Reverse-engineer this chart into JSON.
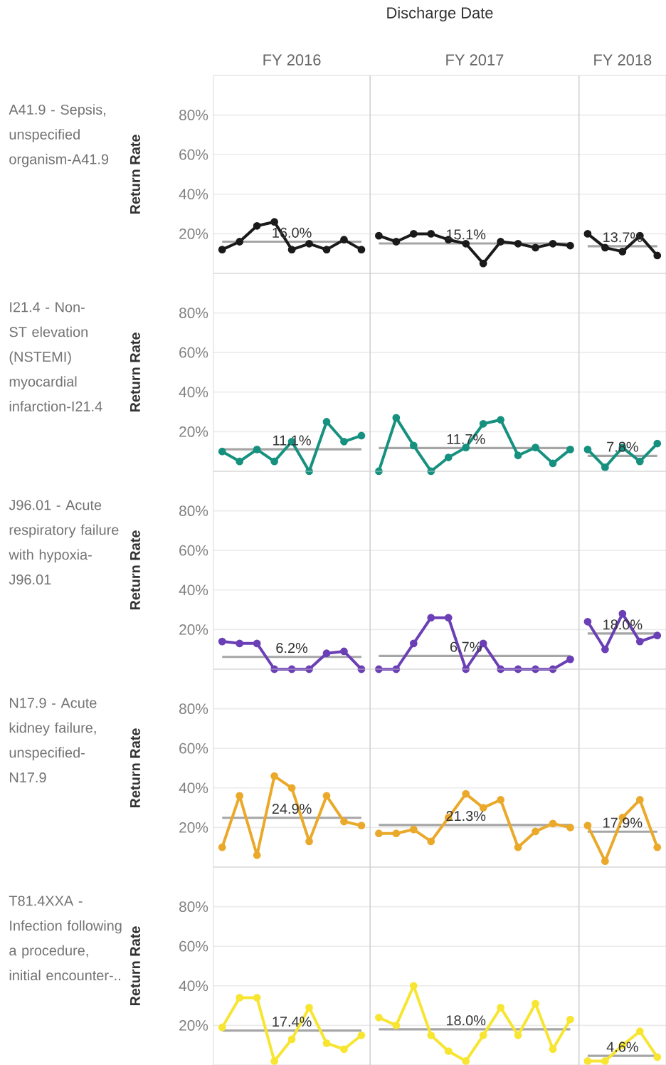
{
  "chart_data": [
    {
      "type": "line",
      "title": "Discharge Date",
      "annotations": [
        "FY 2016",
        "FY 2017",
        "FY 2018"
      ],
      "subtitle": "A41.9 - Sepsis, unspecified organism-A41.9",
      "ylabel": "Return Rate",
      "categories": [
        null,
        null,
        null,
        null,
        null,
        null,
        null,
        null,
        null,
        null,
        null,
        null,
        null,
        null,
        null,
        null,
        null,
        null,
        null,
        null,
        null,
        null,
        null,
        null,
        null,
        null
      ],
      "marker": "circle",
      "ylim": [
        0,
        100
      ],
      "yticks": [
        {
          "value": 20,
          "label": "20%"
        },
        {
          "value": 40,
          "label": "40%"
        },
        {
          "value": 60,
          "label": "60%"
        },
        {
          "value": 80,
          "label": "80%"
        }
      ],
      "grid": "y",
      "tick_labels": "y",
      "series": [
        {
          "color": "#a6a6a6",
          "marker": "none",
          "values": [
            16.0,
            16.0,
            16.0,
            16.0,
            16.0,
            16.0,
            16.0,
            16.0,
            16.0,
            null,
            null,
            null,
            null,
            null,
            null,
            null,
            null,
            null,
            null,
            null,
            null,
            null,
            null,
            null,
            null,
            null
          ],
          "value_labels": [
            null,
            null,
            null,
            null,
            "16.0%",
            null,
            null,
            null,
            null,
            null,
            null,
            null,
            null,
            null,
            null,
            null,
            null,
            null,
            null,
            null,
            null,
            null,
            null,
            null,
            null,
            null
          ]
        },
        {
          "color": "#a6a6a6",
          "marker": "none",
          "values": [
            null,
            null,
            null,
            null,
            null,
            null,
            null,
            null,
            null,
            15.1,
            15.1,
            15.1,
            15.1,
            15.1,
            15.1,
            15.1,
            15.1,
            15.1,
            15.1,
            15.1,
            15.1,
            null,
            null,
            null,
            null,
            null
          ],
          "value_labels": [
            null,
            null,
            null,
            null,
            null,
            null,
            null,
            null,
            null,
            null,
            null,
            null,
            null,
            null,
            "15.1%",
            null,
            null,
            null,
            null,
            null,
            null,
            null,
            null,
            null,
            null,
            null
          ]
        },
        {
          "color": "#a6a6a6",
          "marker": "none",
          "values": [
            null,
            null,
            null,
            null,
            null,
            null,
            null,
            null,
            null,
            null,
            null,
            null,
            null,
            null,
            null,
            null,
            null,
            null,
            null,
            null,
            null,
            13.7,
            13.7,
            13.7,
            13.7,
            13.7
          ],
          "value_labels": [
            null,
            null,
            null,
            null,
            null,
            null,
            null,
            null,
            null,
            null,
            null,
            null,
            null,
            null,
            null,
            null,
            null,
            null,
            null,
            null,
            null,
            null,
            null,
            "13.7%",
            null,
            null
          ]
        },
        {
          "color": "#1a1a1a",
          "values": [
            12,
            16,
            24,
            26,
            12,
            15,
            12,
            17,
            12,
            null,
            null,
            null,
            null,
            null,
            null,
            null,
            null,
            null,
            null,
            null,
            null,
            null,
            null,
            null,
            null,
            null
          ]
        },
        {
          "color": "#1a1a1a",
          "values": [
            null,
            null,
            null,
            null,
            null,
            null,
            null,
            null,
            null,
            19,
            16,
            20,
            20,
            17,
            15,
            5,
            16,
            15,
            13,
            15,
            14,
            null,
            null,
            null,
            null,
            null
          ]
        },
        {
          "color": "#1a1a1a",
          "values": [
            null,
            null,
            null,
            null,
            null,
            null,
            null,
            null,
            null,
            null,
            null,
            null,
            null,
            null,
            null,
            null,
            null,
            null,
            null,
            null,
            null,
            20,
            13,
            11,
            19,
            9
          ]
        }
      ]
    },
    {
      "type": "line",
      "subtitle": "I21.4 - Non-ST elevation (NSTEMI) myocardial infarction-I21.4",
      "ylabel": "Return Rate",
      "categories": [
        null,
        null,
        null,
        null,
        null,
        null,
        null,
        null,
        null,
        null,
        null,
        null,
        null,
        null,
        null,
        null,
        null,
        null,
        null,
        null,
        null,
        null,
        null,
        null,
        null,
        null
      ],
      "marker": "circle",
      "ylim": [
        0,
        100
      ],
      "yticks": [
        {
          "value": 20,
          "label": "20%"
        },
        {
          "value": 40,
          "label": "40%"
        },
        {
          "value": 60,
          "label": "60%"
        },
        {
          "value": 80,
          "label": "80%"
        }
      ],
      "grid": "y",
      "tick_labels": "y",
      "series": [
        {
          "color": "#a6a6a6",
          "marker": "none",
          "values": [
            11.1,
            11.1,
            11.1,
            11.1,
            11.1,
            11.1,
            11.1,
            11.1,
            11.1,
            null,
            null,
            null,
            null,
            null,
            null,
            null,
            null,
            null,
            null,
            null,
            null,
            null,
            null,
            null,
            null,
            null
          ],
          "value_labels": [
            null,
            null,
            null,
            null,
            "11.1%",
            null,
            null,
            null,
            null,
            null,
            null,
            null,
            null,
            null,
            null,
            null,
            null,
            null,
            null,
            null,
            null,
            null,
            null,
            null,
            null,
            null
          ]
        },
        {
          "color": "#a6a6a6",
          "marker": "none",
          "values": [
            null,
            null,
            null,
            null,
            null,
            null,
            null,
            null,
            null,
            11.7,
            11.7,
            11.7,
            11.7,
            11.7,
            11.7,
            11.7,
            11.7,
            11.7,
            11.7,
            11.7,
            11.7,
            null,
            null,
            null,
            null,
            null
          ],
          "value_labels": [
            null,
            null,
            null,
            null,
            null,
            null,
            null,
            null,
            null,
            null,
            null,
            null,
            null,
            null,
            "11.7%",
            null,
            null,
            null,
            null,
            null,
            null,
            null,
            null,
            null,
            null,
            null
          ]
        },
        {
          "color": "#a6a6a6",
          "marker": "none",
          "values": [
            null,
            null,
            null,
            null,
            null,
            null,
            null,
            null,
            null,
            null,
            null,
            null,
            null,
            null,
            null,
            null,
            null,
            null,
            null,
            null,
            null,
            7.8,
            7.8,
            7.8,
            7.8,
            7.8
          ],
          "value_labels": [
            null,
            null,
            null,
            null,
            null,
            null,
            null,
            null,
            null,
            null,
            null,
            null,
            null,
            null,
            null,
            null,
            null,
            null,
            null,
            null,
            null,
            null,
            null,
            "7.8%",
            null,
            null
          ]
        },
        {
          "color": "#17917f",
          "values": [
            10,
            5,
            11,
            5,
            15,
            0,
            25,
            15,
            18,
            null,
            null,
            null,
            null,
            null,
            null,
            null,
            null,
            null,
            null,
            null,
            null,
            null,
            null,
            null,
            null,
            null
          ]
        },
        {
          "color": "#17917f",
          "values": [
            null,
            null,
            null,
            null,
            null,
            null,
            null,
            null,
            null,
            0,
            27,
            13,
            0,
            7,
            12,
            24,
            26,
            8,
            12,
            4,
            11,
            null,
            null,
            null,
            null,
            null
          ]
        },
        {
          "color": "#17917f",
          "values": [
            null,
            null,
            null,
            null,
            null,
            null,
            null,
            null,
            null,
            null,
            null,
            null,
            null,
            null,
            null,
            null,
            null,
            null,
            null,
            null,
            null,
            11,
            2,
            12,
            5,
            14
          ]
        }
      ]
    },
    {
      "type": "line",
      "subtitle": "J96.01 - Acute respiratory failure with hypoxia-J96.01",
      "ylabel": "Return Rate",
      "categories": [
        null,
        null,
        null,
        null,
        null,
        null,
        null,
        null,
        null,
        null,
        null,
        null,
        null,
        null,
        null,
        null,
        null,
        null,
        null,
        null,
        null,
        null,
        null,
        null,
        null,
        null
      ],
      "marker": "circle",
      "ylim": [
        0,
        100
      ],
      "yticks": [
        {
          "value": 20,
          "label": "20%"
        },
        {
          "value": 40,
          "label": "40%"
        },
        {
          "value": 60,
          "label": "60%"
        },
        {
          "value": 80,
          "label": "80%"
        }
      ],
      "grid": "y",
      "tick_labels": "y",
      "series": [
        {
          "color": "#a6a6a6",
          "marker": "none",
          "values": [
            6.2,
            6.2,
            6.2,
            6.2,
            6.2,
            6.2,
            6.2,
            6.2,
            6.2,
            null,
            null,
            null,
            null,
            null,
            null,
            null,
            null,
            null,
            null,
            null,
            null,
            null,
            null,
            null,
            null,
            null
          ],
          "value_labels": [
            null,
            null,
            null,
            null,
            "6.2%",
            null,
            null,
            null,
            null,
            null,
            null,
            null,
            null,
            null,
            null,
            null,
            null,
            null,
            null,
            null,
            null,
            null,
            null,
            null,
            null,
            null
          ]
        },
        {
          "color": "#a6a6a6",
          "marker": "none",
          "values": [
            null,
            null,
            null,
            null,
            null,
            null,
            null,
            null,
            null,
            6.7,
            6.7,
            6.7,
            6.7,
            6.7,
            6.7,
            6.7,
            6.7,
            6.7,
            6.7,
            6.7,
            6.7,
            null,
            null,
            null,
            null,
            null
          ],
          "value_labels": [
            null,
            null,
            null,
            null,
            null,
            null,
            null,
            null,
            null,
            null,
            null,
            null,
            null,
            null,
            "6.7%",
            null,
            null,
            null,
            null,
            null,
            null,
            null,
            null,
            null,
            null,
            null
          ]
        },
        {
          "color": "#a6a6a6",
          "marker": "none",
          "values": [
            null,
            null,
            null,
            null,
            null,
            null,
            null,
            null,
            null,
            null,
            null,
            null,
            null,
            null,
            null,
            null,
            null,
            null,
            null,
            null,
            null,
            18.0,
            18.0,
            18.0,
            18.0,
            18.0
          ],
          "value_labels": [
            null,
            null,
            null,
            null,
            null,
            null,
            null,
            null,
            null,
            null,
            null,
            null,
            null,
            null,
            null,
            null,
            null,
            null,
            null,
            null,
            null,
            null,
            null,
            "18.0%",
            null,
            null
          ]
        },
        {
          "color": "#6b3fb5",
          "values": [
            14,
            13,
            13,
            0,
            0,
            0,
            8,
            9,
            0,
            null,
            null,
            null,
            null,
            null,
            null,
            null,
            null,
            null,
            null,
            null,
            null,
            null,
            null,
            null,
            null,
            null
          ]
        },
        {
          "color": "#6b3fb5",
          "values": [
            null,
            null,
            null,
            null,
            null,
            null,
            null,
            null,
            null,
            0,
            0,
            13,
            26,
            26,
            0,
            13,
            0,
            0,
            0,
            0,
            5,
            null,
            null,
            null,
            null,
            null
          ]
        },
        {
          "color": "#6b3fb5",
          "values": [
            null,
            null,
            null,
            null,
            null,
            null,
            null,
            null,
            null,
            null,
            null,
            null,
            null,
            null,
            null,
            null,
            null,
            null,
            null,
            null,
            null,
            24,
            10,
            28,
            14,
            17
          ]
        }
      ]
    },
    {
      "type": "line",
      "subtitle": "N17.9 - Acute kidney failure, unspecified-N17.9",
      "ylabel": "Return Rate",
      "categories": [
        null,
        null,
        null,
        null,
        null,
        null,
        null,
        null,
        null,
        null,
        null,
        null,
        null,
        null,
        null,
        null,
        null,
        null,
        null,
        null,
        null,
        null,
        null,
        null,
        null,
        null
      ],
      "marker": "circle",
      "ylim": [
        0,
        100
      ],
      "yticks": [
        {
          "value": 20,
          "label": "20%"
        },
        {
          "value": 40,
          "label": "40%"
        },
        {
          "value": 60,
          "label": "60%"
        },
        {
          "value": 80,
          "label": "80%"
        }
      ],
      "grid": "y",
      "tick_labels": "y",
      "series": [
        {
          "color": "#a6a6a6",
          "marker": "none",
          "values": [
            24.9,
            24.9,
            24.9,
            24.9,
            24.9,
            24.9,
            24.9,
            24.9,
            24.9,
            null,
            null,
            null,
            null,
            null,
            null,
            null,
            null,
            null,
            null,
            null,
            null,
            null,
            null,
            null,
            null,
            null
          ],
          "value_labels": [
            null,
            null,
            null,
            null,
            "24.9%",
            null,
            null,
            null,
            null,
            null,
            null,
            null,
            null,
            null,
            null,
            null,
            null,
            null,
            null,
            null,
            null,
            null,
            null,
            null,
            null,
            null
          ]
        },
        {
          "color": "#a6a6a6",
          "marker": "none",
          "values": [
            null,
            null,
            null,
            null,
            null,
            null,
            null,
            null,
            null,
            21.3,
            21.3,
            21.3,
            21.3,
            21.3,
            21.3,
            21.3,
            21.3,
            21.3,
            21.3,
            21.3,
            21.3,
            null,
            null,
            null,
            null,
            null
          ],
          "value_labels": [
            null,
            null,
            null,
            null,
            null,
            null,
            null,
            null,
            null,
            null,
            null,
            null,
            null,
            null,
            "21.3%",
            null,
            null,
            null,
            null,
            null,
            null,
            null,
            null,
            null,
            null,
            null
          ]
        },
        {
          "color": "#a6a6a6",
          "marker": "none",
          "values": [
            null,
            null,
            null,
            null,
            null,
            null,
            null,
            null,
            null,
            null,
            null,
            null,
            null,
            null,
            null,
            null,
            null,
            null,
            null,
            null,
            null,
            17.9,
            17.9,
            17.9,
            17.9,
            17.9
          ],
          "value_labels": [
            null,
            null,
            null,
            null,
            null,
            null,
            null,
            null,
            null,
            null,
            null,
            null,
            null,
            null,
            null,
            null,
            null,
            null,
            null,
            null,
            null,
            null,
            null,
            "17.9%",
            null,
            null
          ]
        },
        {
          "color": "#eaa92a",
          "values": [
            10,
            36,
            6,
            46,
            40,
            13,
            36,
            23,
            21,
            null,
            null,
            null,
            null,
            null,
            null,
            null,
            null,
            null,
            null,
            null,
            null,
            null,
            null,
            null,
            null,
            null
          ]
        },
        {
          "color": "#eaa92a",
          "values": [
            null,
            null,
            null,
            null,
            null,
            null,
            null,
            null,
            null,
            17,
            17,
            19,
            13,
            25,
            37,
            30,
            34,
            10,
            18,
            22,
            20,
            null,
            null,
            null,
            null,
            null
          ]
        },
        {
          "color": "#eaa92a",
          "values": [
            null,
            null,
            null,
            null,
            null,
            null,
            null,
            null,
            null,
            null,
            null,
            null,
            null,
            null,
            null,
            null,
            null,
            null,
            null,
            null,
            null,
            21,
            3,
            25,
            34,
            10
          ]
        }
      ]
    },
    {
      "type": "line",
      "subtitle": "T81.4XXA - Infection following a procedure, initial encounter-..",
      "ylabel": "Return Rate",
      "categories": [
        null,
        null,
        null,
        null,
        null,
        null,
        null,
        null,
        null,
        null,
        null,
        null,
        null,
        null,
        null,
        null,
        null,
        null,
        null,
        null,
        null,
        null,
        null,
        null,
        null,
        null
      ],
      "marker": "circle",
      "ylim": [
        0,
        100
      ],
      "yticks": [
        {
          "value": 20,
          "label": "20%"
        },
        {
          "value": 40,
          "label": "40%"
        },
        {
          "value": 60,
          "label": "60%"
        },
        {
          "value": 80,
          "label": "80%"
        }
      ],
      "grid": "y",
      "tick_labels": "y",
      "series": [
        {
          "color": "#a6a6a6",
          "marker": "none",
          "values": [
            17.4,
            17.4,
            17.4,
            17.4,
            17.4,
            17.4,
            17.4,
            17.4,
            17.4,
            null,
            null,
            null,
            null,
            null,
            null,
            null,
            null,
            null,
            null,
            null,
            null,
            null,
            null,
            null,
            null,
            null
          ],
          "value_labels": [
            null,
            null,
            null,
            null,
            "17.4%",
            null,
            null,
            null,
            null,
            null,
            null,
            null,
            null,
            null,
            null,
            null,
            null,
            null,
            null,
            null,
            null,
            null,
            null,
            null,
            null,
            null
          ]
        },
        {
          "color": "#a6a6a6",
          "marker": "none",
          "values": [
            null,
            null,
            null,
            null,
            null,
            null,
            null,
            null,
            null,
            18.0,
            18.0,
            18.0,
            18.0,
            18.0,
            18.0,
            18.0,
            18.0,
            18.0,
            18.0,
            18.0,
            18.0,
            null,
            null,
            null,
            null,
            null
          ],
          "value_labels": [
            null,
            null,
            null,
            null,
            null,
            null,
            null,
            null,
            null,
            null,
            null,
            null,
            null,
            null,
            "18.0%",
            null,
            null,
            null,
            null,
            null,
            null,
            null,
            null,
            null,
            null,
            null
          ]
        },
        {
          "color": "#a6a6a6",
          "marker": "none",
          "values": [
            null,
            null,
            null,
            null,
            null,
            null,
            null,
            null,
            null,
            null,
            null,
            null,
            null,
            null,
            null,
            null,
            null,
            null,
            null,
            null,
            null,
            4.6,
            4.6,
            4.6,
            4.6,
            4.6
          ],
          "value_labels": [
            null,
            null,
            null,
            null,
            null,
            null,
            null,
            null,
            null,
            null,
            null,
            null,
            null,
            null,
            null,
            null,
            null,
            null,
            null,
            null,
            null,
            null,
            null,
            "4.6%",
            null,
            null
          ]
        },
        {
          "color": "#f7e531",
          "values": [
            19,
            34,
            34,
            2,
            13,
            29,
            11,
            8,
            15,
            null,
            null,
            null,
            null,
            null,
            null,
            null,
            null,
            null,
            null,
            null,
            null,
            null,
            null,
            null,
            null,
            null
          ]
        },
        {
          "color": "#f7e531",
          "values": [
            null,
            null,
            null,
            null,
            null,
            null,
            null,
            null,
            null,
            24,
            20,
            40,
            15,
            7,
            2,
            15,
            29,
            15,
            31,
            8,
            23,
            null,
            null,
            null,
            null,
            null
          ]
        },
        {
          "color": "#f7e531",
          "values": [
            null,
            null,
            null,
            null,
            null,
            null,
            null,
            null,
            null,
            null,
            null,
            null,
            null,
            null,
            null,
            null,
            null,
            null,
            null,
            null,
            null,
            2,
            2,
            10,
            17,
            4
          ]
        }
      ]
    }
  ]
}
